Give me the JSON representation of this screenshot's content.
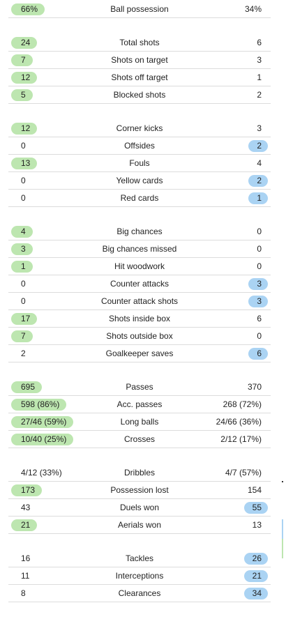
{
  "groups": [
    {
      "rows": [
        {
          "label": "Ball possession",
          "home": "66%",
          "away": "34%",
          "hl": "home"
        }
      ]
    },
    {
      "rows": [
        {
          "label": "Total shots",
          "home": "24",
          "away": "6",
          "hl": "home"
        },
        {
          "label": "Shots on target",
          "home": "7",
          "away": "3",
          "hl": "home"
        },
        {
          "label": "Shots off target",
          "home": "12",
          "away": "1",
          "hl": "home"
        },
        {
          "label": "Blocked shots",
          "home": "5",
          "away": "2",
          "hl": "home"
        }
      ]
    },
    {
      "rows": [
        {
          "label": "Corner kicks",
          "home": "12",
          "away": "3",
          "hl": "home"
        },
        {
          "label": "Offsides",
          "home": "0",
          "away": "2",
          "hl": "away"
        },
        {
          "label": "Fouls",
          "home": "13",
          "away": "4",
          "hl": "home"
        },
        {
          "label": "Yellow cards",
          "home": "0",
          "away": "2",
          "hl": "away"
        },
        {
          "label": "Red cards",
          "home": "0",
          "away": "1",
          "hl": "away"
        }
      ]
    },
    {
      "rows": [
        {
          "label": "Big chances",
          "home": "4",
          "away": "0",
          "hl": "home"
        },
        {
          "label": "Big chances missed",
          "home": "3",
          "away": "0",
          "hl": "home"
        },
        {
          "label": "Hit woodwork",
          "home": "1",
          "away": "0",
          "hl": "home"
        },
        {
          "label": "Counter attacks",
          "home": "0",
          "away": "3",
          "hl": "away"
        },
        {
          "label": "Counter attack shots",
          "home": "0",
          "away": "3",
          "hl": "away"
        },
        {
          "label": "Shots inside box",
          "home": "17",
          "away": "6",
          "hl": "home"
        },
        {
          "label": "Shots outside box",
          "home": "7",
          "away": "0",
          "hl": "home"
        },
        {
          "label": "Goalkeeper saves",
          "home": "2",
          "away": "6",
          "hl": "away"
        }
      ]
    },
    {
      "rows": [
        {
          "label": "Passes",
          "home": "695",
          "away": "370",
          "hl": "home"
        },
        {
          "label": "Acc. passes",
          "home": "598 (86%)",
          "away": "268 (72%)",
          "hl": "home"
        },
        {
          "label": "Long balls",
          "home": "27/46 (59%)",
          "away": "24/66 (36%)",
          "hl": "home"
        },
        {
          "label": "Crosses",
          "home": "10/40 (25%)",
          "away": "2/12 (17%)",
          "hl": "home"
        }
      ]
    },
    {
      "rows": [
        {
          "label": "Dribbles",
          "home": "4/12 (33%)",
          "away": "4/7 (57%)",
          "hl": "none"
        },
        {
          "label": "Possession lost",
          "home": "173",
          "away": "154",
          "hl": "home"
        },
        {
          "label": "Duels won",
          "home": "43",
          "away": "55",
          "hl": "away"
        },
        {
          "label": "Aerials won",
          "home": "21",
          "away": "13",
          "hl": "home"
        }
      ]
    },
    {
      "rows": [
        {
          "label": "Tackles",
          "home": "16",
          "away": "26",
          "hl": "away"
        },
        {
          "label": "Interceptions",
          "home": "11",
          "away": "21",
          "hl": "away"
        },
        {
          "label": "Clearances",
          "home": "8",
          "away": "34",
          "hl": "away"
        }
      ]
    }
  ],
  "colors": {
    "home_highlight": "#bde6b0",
    "away_highlight": "#aad3f3",
    "divider": "#dcdcdc"
  }
}
